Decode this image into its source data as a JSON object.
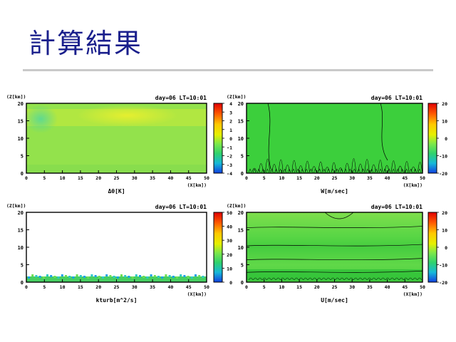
{
  "slide": {
    "title": "計算結果"
  },
  "panels": [
    {
      "yunit": "(Z[km])",
      "header": "day=06 LT=10:01",
      "xunit": "(X[km])",
      "xlabel": "Δθ[K]",
      "colorbar_ticks": [
        "4",
        "3",
        "2",
        "1",
        "0",
        "-1",
        "-2",
        "-3",
        "-4"
      ]
    },
    {
      "yunit": "(Z[km])",
      "header": "day=06 LT=10:01",
      "xunit": "(X[km])",
      "xlabel": "W[m/sec]",
      "colorbar_ticks": [
        "20",
        "10",
        "0",
        "-10",
        "-20"
      ]
    },
    {
      "yunit": "(Z[km])",
      "header": "day=06 LT=10:01",
      "xunit": "(X[km])",
      "xlabel": "kturb[m^2/s]",
      "colorbar_ticks": [
        "50",
        "40",
        "30",
        "20",
        "10",
        "0"
      ]
    },
    {
      "yunit": "(Z[km])",
      "header": "day=06 LT=10:01",
      "xunit": "(X[km])",
      "xlabel": "U[m/sec]",
      "colorbar_ticks": [
        "20",
        "10",
        "0",
        "-10",
        "-20"
      ]
    }
  ],
  "chart_data": [
    {
      "type": "heatmap",
      "title": "day=06 LT=10:01",
      "xlabel": "Δθ[K]",
      "x_ticks": [
        0,
        5,
        10,
        15,
        20,
        25,
        30,
        35,
        40,
        45,
        50
      ],
      "y_ticks": [
        0,
        5,
        10,
        15,
        20
      ],
      "xlim": [
        0,
        50
      ],
      "ylim": [
        0,
        20
      ],
      "colorbar_range": [
        -4,
        4
      ]
    },
    {
      "type": "heatmap",
      "title": "day=06 LT=10:01",
      "xlabel": "W[m/sec]",
      "x_ticks": [
        0,
        5,
        10,
        15,
        20,
        25,
        30,
        35,
        40,
        45,
        50
      ],
      "y_ticks": [
        0,
        5,
        10,
        15,
        20
      ],
      "xlim": [
        0,
        50
      ],
      "ylim": [
        0,
        20
      ],
      "colorbar_range": [
        -20,
        20
      ]
    },
    {
      "type": "heatmap",
      "title": "day=06 LT=10:01",
      "xlabel": "kturb[m^2/s]",
      "x_ticks": [
        0,
        5,
        10,
        15,
        20,
        25,
        30,
        35,
        40,
        45,
        50
      ],
      "y_ticks": [
        0,
        5,
        10,
        15,
        20
      ],
      "xlim": [
        0,
        50
      ],
      "ylim": [
        0,
        20
      ],
      "colorbar_range": [
        0,
        50
      ]
    },
    {
      "type": "heatmap",
      "title": "day=06 LT=10:01",
      "xlabel": "U[m/sec]",
      "x_ticks": [
        0,
        5,
        10,
        15,
        20,
        25,
        30,
        35,
        40,
        45,
        50
      ],
      "y_ticks": [
        0,
        5,
        10,
        15,
        20
      ],
      "xlim": [
        0,
        50
      ],
      "ylim": [
        0,
        20
      ],
      "colorbar_range": [
        -20,
        20
      ]
    }
  ]
}
